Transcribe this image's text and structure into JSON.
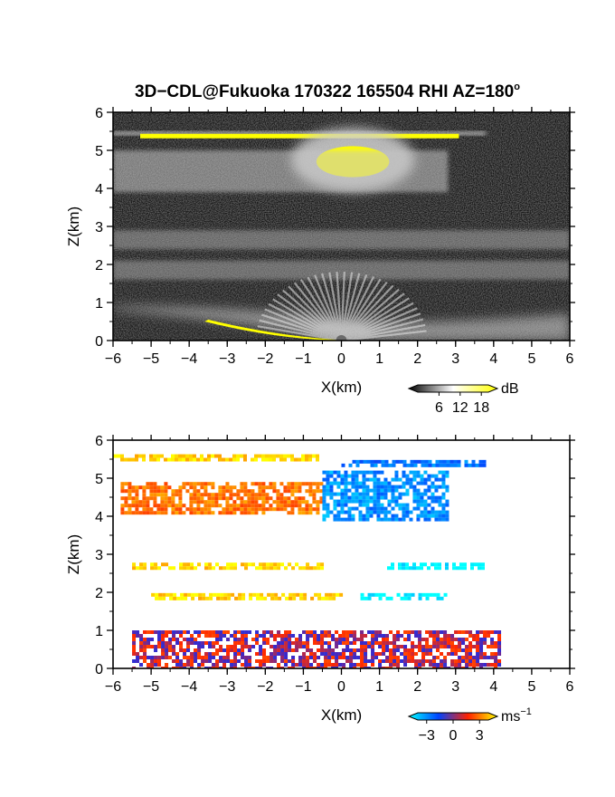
{
  "figure": {
    "title": "3D−CDL@Fukuoka 170322 165504 RHI AZ=180",
    "title_superscript": "o"
  },
  "chart_data": [
    {
      "type": "heatmap",
      "quantity": "backscatter intensity",
      "xlabel": "X(km)",
      "ylabel": "Z(km)",
      "xlim": [
        -6,
        6
      ],
      "ylim": [
        0,
        6
      ],
      "xticks": [
        -6,
        -5,
        -4,
        -3,
        -2,
        -1,
        0,
        1,
        2,
        3,
        4,
        5,
        6
      ],
      "yticks": [
        0,
        1,
        2,
        3,
        4,
        5,
        6
      ],
      "colorbar": {
        "unit": "dB",
        "ticks": [
          6,
          12,
          18
        ],
        "range": [
          0,
          20
        ],
        "colors": [
          "#000000",
          "#ffffff",
          "#ffff00"
        ]
      },
      "features": [
        {
          "name": "cloud layer top",
          "x": [
            -6,
            3.8
          ],
          "z": 5.45,
          "level_db": 18
        },
        {
          "name": "dense cloud core",
          "x": [
            -0.8,
            1.4
          ],
          "z": [
            4.2,
            5.3
          ],
          "level_db": 20
        },
        {
          "name": "diffuse layer",
          "x": [
            -6,
            2.8
          ],
          "z": [
            3.9,
            5.0
          ],
          "level_db": 12
        },
        {
          "name": "aerosol layer",
          "x": [
            -6,
            6
          ],
          "z": [
            2.4,
            2.9
          ],
          "level_db": 9
        },
        {
          "name": "aerosol layer",
          "x": [
            -6,
            6
          ],
          "z": [
            1.6,
            2.1
          ],
          "level_db": 9
        },
        {
          "name": "boundary layer",
          "x": [
            -6,
            6
          ],
          "z": [
            0,
            0.9
          ],
          "level_db": 14
        },
        {
          "name": "ground clutter",
          "x": [
            -3.5,
            0.2
          ],
          "z": [
            0,
            0.5
          ],
          "level_db": 18
        }
      ]
    },
    {
      "type": "heatmap",
      "quantity": "Doppler velocity",
      "xlabel": "X(km)",
      "ylabel": "Z(km)",
      "xlim": [
        -6,
        6
      ],
      "ylim": [
        0,
        6
      ],
      "xticks": [
        -6,
        -5,
        -4,
        -3,
        -2,
        -1,
        0,
        1,
        2,
        3,
        4,
        5,
        6
      ],
      "yticks": [
        0,
        1,
        2,
        3,
        4,
        5,
        6
      ],
      "colorbar": {
        "unit": "ms",
        "unit_exponent": "−1",
        "ticks": [
          -3,
          0,
          3
        ],
        "range": [
          -4,
          4
        ],
        "colors": [
          "#00ffff",
          "#0044ff",
          "#ff2200",
          "#ffff00"
        ]
      },
      "features": [
        {
          "name": "upper layer west",
          "x": [
            -6,
            -0.5
          ],
          "z": 5.55,
          "velocity": 3.5
        },
        {
          "name": "upper layer east",
          "x": [
            0,
            3.8
          ],
          "z": 5.4,
          "velocity": -2.0
        },
        {
          "name": "cloud core west",
          "x": [
            -5.8,
            -0.5
          ],
          "z": [
            4.0,
            4.9
          ],
          "velocity": 2.0
        },
        {
          "name": "cloud core east",
          "x": [
            -0.5,
            2.8
          ],
          "z": [
            3.9,
            5.2
          ],
          "velocity": -2.5
        },
        {
          "name": "layer 2.7 km west",
          "x": [
            -5.5,
            -0.5
          ],
          "z": 2.7,
          "velocity": 3.5
        },
        {
          "name": "layer 2.7 km east",
          "x": [
            1.2,
            3.8
          ],
          "z": 2.7,
          "velocity": -4.0
        },
        {
          "name": "layer 1.9 km west",
          "x": [
            -5.0,
            0
          ],
          "z": 1.9,
          "velocity": 3.5
        },
        {
          "name": "layer 1.9 km east",
          "x": [
            0.5,
            2.8
          ],
          "z": 1.9,
          "velocity": -4.0
        },
        {
          "name": "boundary layer",
          "x": [
            -5.5,
            4.2
          ],
          "z": [
            0,
            1.0
          ],
          "velocity": 0.5
        }
      ]
    }
  ]
}
